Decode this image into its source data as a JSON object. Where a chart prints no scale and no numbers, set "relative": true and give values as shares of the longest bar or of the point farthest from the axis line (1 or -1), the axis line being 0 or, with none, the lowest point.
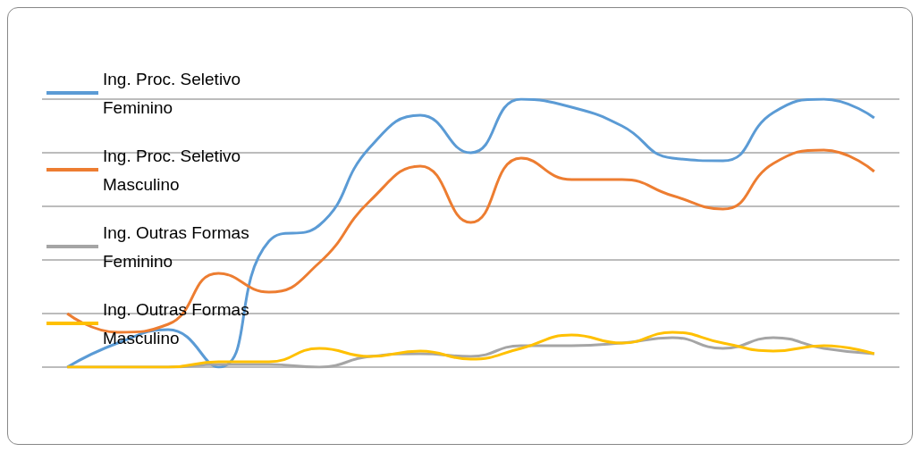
{
  "chart_data": {
    "type": "line",
    "relative": true,
    "grid": "y",
    "legend": "top left",
    "categories": [
      null,
      null,
      null,
      null,
      null,
      null,
      null,
      null,
      null,
      null,
      null,
      null,
      null,
      null,
      null,
      null,
      null
    ],
    "series": [
      {
        "name": "Ing. Proc. Seletivo Feminino",
        "color": "#5b9bd5",
        "values": [
          0,
          0.09,
          0.14,
          0,
          0.47,
          0.53,
          0.82,
          0.94,
          0.8,
          1.0,
          0.97,
          0.9,
          0.78,
          0.77,
          0.95,
          1.0,
          0.93
        ]
      },
      {
        "name": "Ing. Proc. Seletivo Masculino",
        "color": "#ed7d31",
        "values": [
          0.2,
          0.13,
          0.16,
          0.35,
          0.28,
          0.39,
          0.62,
          0.75,
          0.54,
          0.78,
          0.7,
          0.7,
          0.64,
          0.59,
          0.76,
          0.81,
          0.73
        ]
      },
      {
        "name": "Ing. Outras Formas Feminino",
        "color": "#a5a5a5",
        "values": [
          0,
          0,
          0,
          0.01,
          0.01,
          0,
          0.04,
          0.05,
          0.04,
          0.08,
          0.08,
          0.09,
          0.11,
          0.07,
          0.11,
          0.07,
          0.05
        ]
      },
      {
        "name": "Ing. Outras Formas Masculino",
        "color": "#ffc000",
        "values": [
          0,
          0,
          0,
          0.02,
          0.02,
          0.07,
          0.04,
          0.06,
          0.03,
          0.07,
          0.12,
          0.09,
          0.13,
          0.09,
          0.06,
          0.08,
          0.05
        ]
      }
    ]
  }
}
